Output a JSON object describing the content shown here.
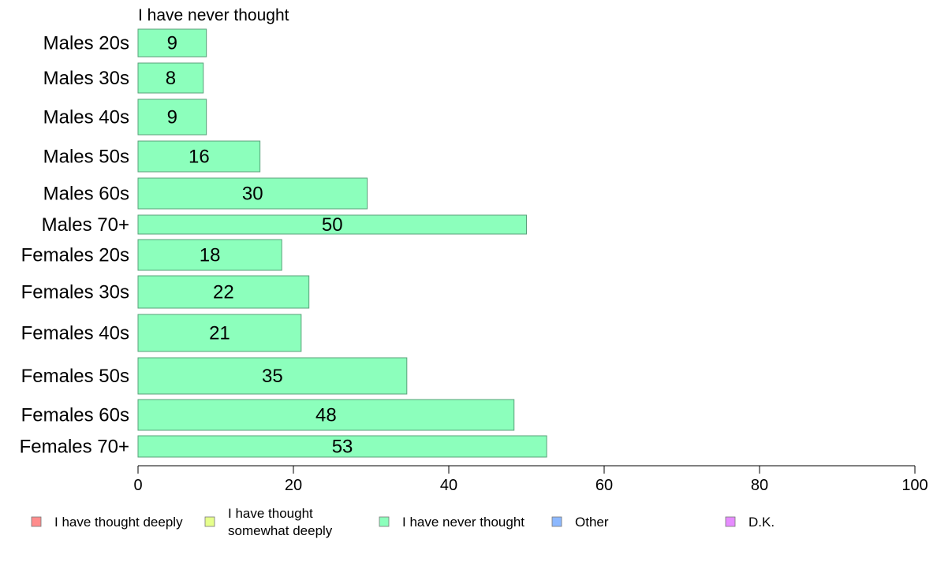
{
  "chart_data": {
    "type": "bar",
    "orientation": "horizontal",
    "panel_title": "I have never thought",
    "categories": [
      "Males 20s",
      "Males 30s",
      "Males 40s",
      "Males 50s",
      "Males 60s",
      "Males 70+",
      "Females 20s",
      "Females 30s",
      "Females 40s",
      "Females 50s",
      "Females 60s",
      "Females 70+"
    ],
    "series": [
      {
        "name": "I have never thought",
        "values": [
          9,
          8,
          9,
          16,
          30,
          50,
          18,
          22,
          21,
          35,
          48,
          53
        ]
      }
    ],
    "bar_display_values": [
      8.8,
      8.4,
      8.8,
      15.7,
      29.5,
      50.0,
      18.5,
      22.0,
      21.0,
      34.6,
      48.4,
      52.6
    ],
    "xlim": [
      0,
      100
    ],
    "xticks": [
      0,
      20,
      40,
      60,
      80,
      100
    ],
    "grid": false,
    "legend_position": "bottom",
    "legend": [
      {
        "label": "I have thought deeply",
        "color": "#ff8c8c"
      },
      {
        "label": "I have thought somewhat deeply",
        "color": "#e6ff8c"
      },
      {
        "label": "I have never thought",
        "color": "#8cffbc"
      },
      {
        "label": "Other",
        "color": "#8cb8ff"
      },
      {
        "label": "D.K.",
        "color": "#e68cff"
      }
    ],
    "bar_color": "#8cffbc",
    "bar_stroke": "#5aa07a"
  }
}
